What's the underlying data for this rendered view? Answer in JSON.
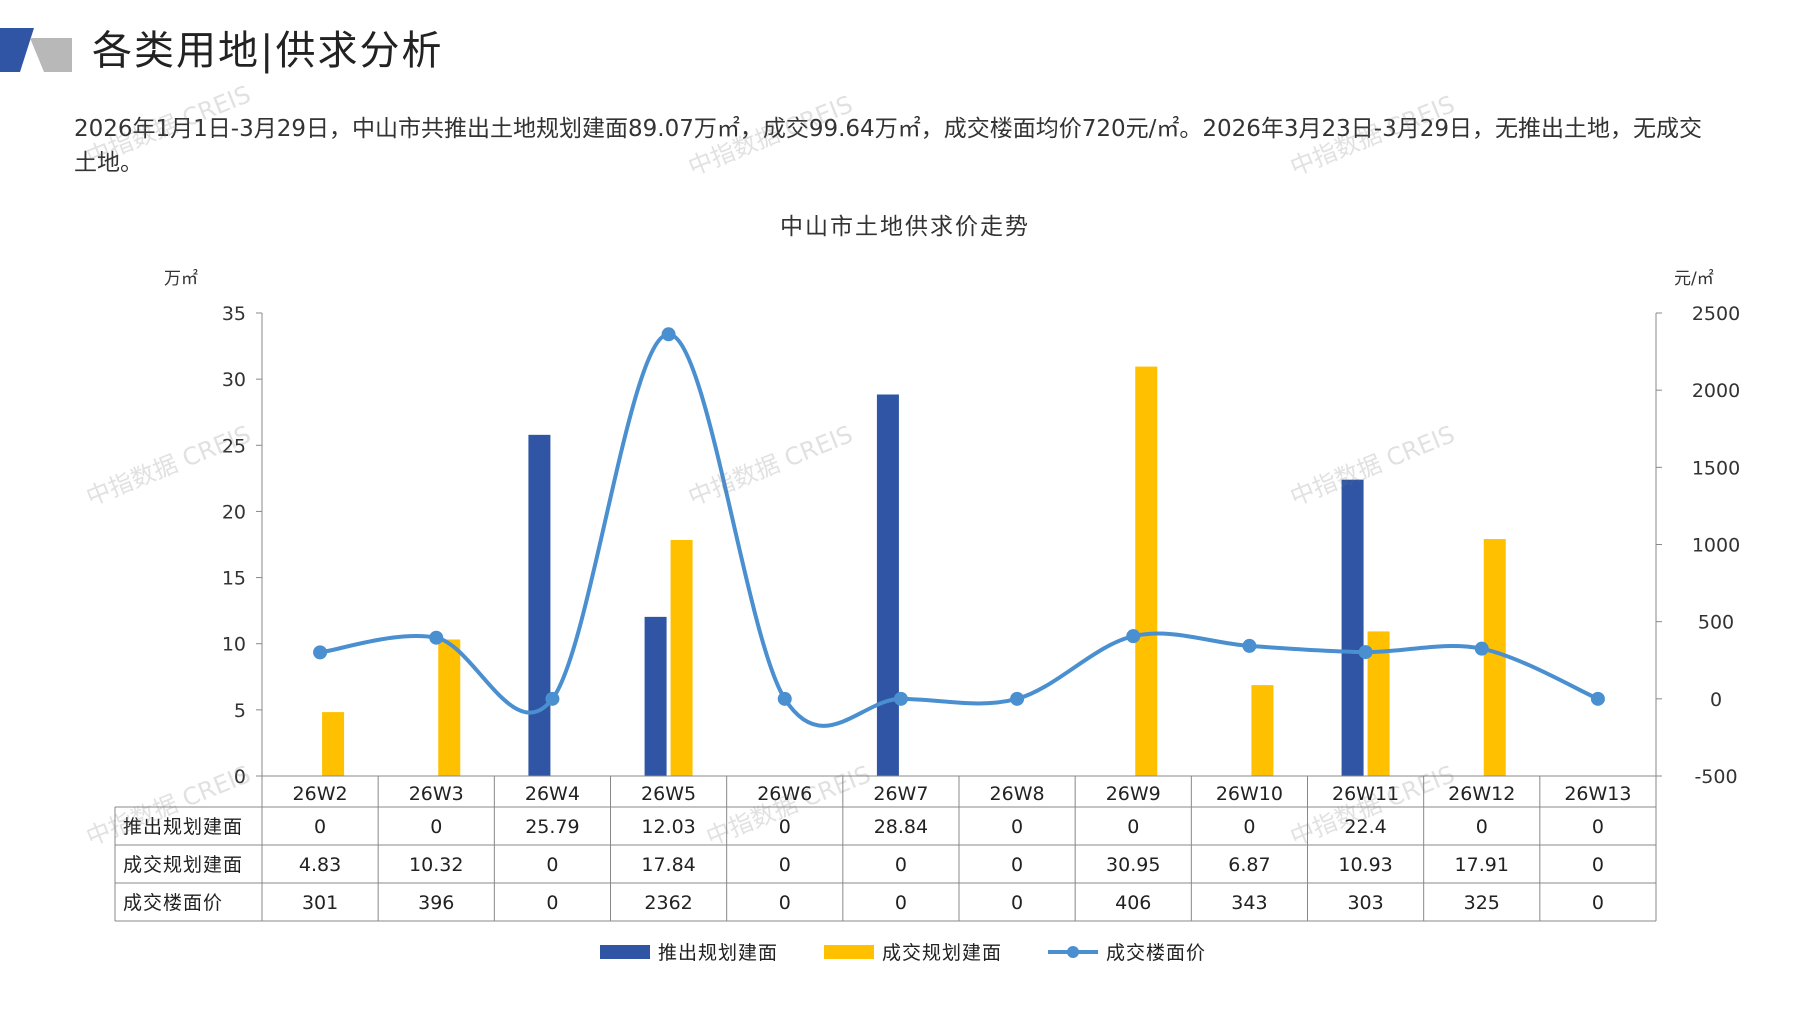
{
  "header": {
    "title": "各类用地|供求分析",
    "summary": "2026年1月1日-3月29日，中山市共推出土地规划建面89.07万㎡，成交99.64万㎡，成交楼面均价720元/㎡。2026年3月23日-3月29日，无推出土地，无成交土地。"
  },
  "watermark": {
    "text": "中指数据 CREIS"
  },
  "colors": {
    "supply": "#2F55A4",
    "deal": "#FFC000",
    "price": "#4A8FD0",
    "logo_dark": "#2F55A4",
    "logo_gray": "#B8B8B8"
  },
  "chart_data": {
    "type": "bar",
    "title": "中山市土地供求价走势",
    "ylabel": "万㎡",
    "y2label": "元/㎡",
    "ylim": [
      0,
      35
    ],
    "y2lim": [
      -500,
      2500
    ],
    "yticks": [
      0,
      5,
      10,
      15,
      20,
      25,
      30,
      35
    ],
    "y2ticks": [
      -500,
      0,
      500,
      1000,
      1500,
      2000,
      2500
    ],
    "categories": [
      "26W2",
      "26W3",
      "26W4",
      "26W5",
      "26W6",
      "26W7",
      "26W8",
      "26W9",
      "26W10",
      "26W11",
      "26W12",
      "26W13"
    ],
    "series": [
      {
        "name": "推出规划建面",
        "type": "bar",
        "axis": "left",
        "values": [
          0,
          0,
          25.79,
          12.03,
          0,
          28.84,
          0,
          0,
          0,
          22.4,
          0,
          0
        ],
        "labels": [
          "0",
          "0",
          "25.79",
          "12.03",
          "0",
          "28.84",
          "0",
          "0",
          "0",
          "22.4",
          "0",
          "0"
        ]
      },
      {
        "name": "成交规划建面",
        "type": "bar",
        "axis": "left",
        "values": [
          4.83,
          10.32,
          0,
          17.84,
          0,
          0,
          0,
          30.95,
          6.87,
          10.93,
          17.91,
          0
        ],
        "labels": [
          "4.83",
          "10.32",
          "0",
          "17.84",
          "0",
          "0",
          "0",
          "30.95",
          "6.87",
          "10.93",
          "17.91",
          "0"
        ]
      },
      {
        "name": "成交楼面价",
        "type": "line",
        "axis": "right",
        "values": [
          301,
          396,
          0,
          2362,
          0,
          0,
          0,
          406,
          343,
          303,
          325,
          0
        ],
        "labels": [
          "301",
          "396",
          "0",
          "2362",
          "0",
          "0",
          "0",
          "406",
          "343",
          "303",
          "325",
          "0"
        ]
      }
    ],
    "legend": "bottom",
    "data_table": true,
    "grid": false
  }
}
